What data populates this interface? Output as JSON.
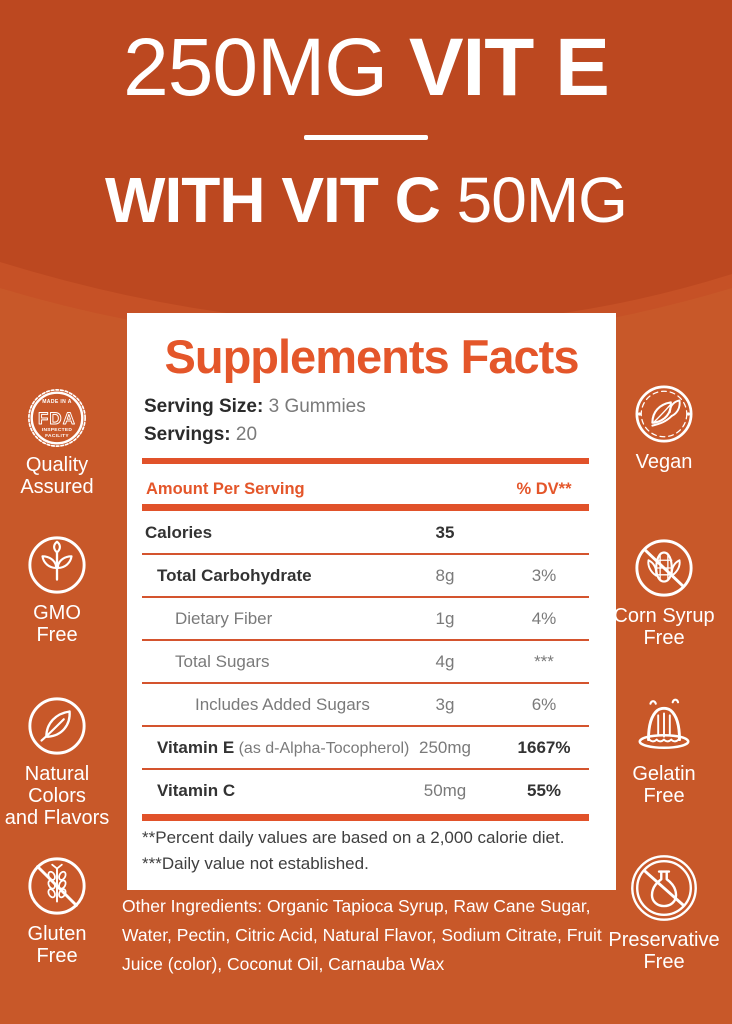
{
  "header": {
    "line1_light": "250MG ",
    "line1_bold": "VIT E",
    "line2_bold": "WITH VIT C ",
    "line2_light": "50MG"
  },
  "panel": {
    "title": "Supplements Facts",
    "serving_size_label": "Serving Size:",
    "serving_size_value": "3 Gummies",
    "servings_label": "Servings:",
    "servings_value": "20",
    "col_amount": "Amount Per Serving",
    "col_dv": "% DV**",
    "rows": [
      {
        "label": "Calories",
        "note": "",
        "amount": "35",
        "dv": "",
        "indent": 0,
        "bold": true,
        "amount_bold": true,
        "dv_bold": false
      },
      {
        "label": "Total Carbohydrate",
        "note": "",
        "amount": "8g",
        "dv": "3%",
        "indent": 1,
        "bold": true,
        "amount_bold": false,
        "dv_bold": false
      },
      {
        "label": "Dietary Fiber",
        "note": "",
        "amount": "1g",
        "dv": "4%",
        "indent": 2,
        "bold": false,
        "amount_bold": false,
        "dv_bold": false
      },
      {
        "label": "Total Sugars",
        "note": "",
        "amount": "4g",
        "dv": "***",
        "indent": 2,
        "bold": false,
        "amount_bold": false,
        "dv_bold": false
      },
      {
        "label": "Includes Added Sugars",
        "note": "",
        "amount": "3g",
        "dv": "6%",
        "indent": 3,
        "bold": false,
        "amount_bold": false,
        "dv_bold": false
      },
      {
        "label": "Vitamin E",
        "note": "(as d-Alpha-Tocopherol)",
        "amount": "250mg",
        "dv": "1667%",
        "indent": 1,
        "bold": true,
        "amount_bold": false,
        "dv_bold": true
      },
      {
        "label": "Vitamin C",
        "note": "",
        "amount": "50mg",
        "dv": "55%",
        "indent": 1,
        "bold": true,
        "amount_bold": false,
        "dv_bold": true
      }
    ],
    "footnote1": "**Percent daily values are based on a 2,000 calorie diet.",
    "footnote2": "***Daily value not established."
  },
  "ingredients": "Other Ingredients: Organic Tapioca Syrup, Raw Cane Sugar, Water, Pectin, Citric Acid, Natural Flavor, Sodium Citrate, Fruit Juice (color), Coconut Oil, Carnauba Wax",
  "badges": {
    "fda_text": {
      "top": "MADE IN A",
      "main": "FDA",
      "line1": "INSPECTED",
      "line2": "FACILITY"
    },
    "left": [
      {
        "name": "quality-assured",
        "icon": "fda-seal",
        "lines": [
          "Quality",
          "Assured"
        ]
      },
      {
        "name": "gmo-free",
        "icon": "gmo-plant",
        "lines": [
          "GMO",
          "Free"
        ]
      },
      {
        "name": "natural-colors-and-flavors",
        "icon": "leaf",
        "lines": [
          "Natural",
          "Colors",
          "and Flavors"
        ]
      },
      {
        "name": "gluten-free",
        "icon": "wheat-crossed",
        "lines": [
          "Gluten",
          "Free"
        ]
      }
    ],
    "right": [
      {
        "name": "vegan",
        "icon": "vegan-leaves",
        "lines": [
          "Vegan"
        ]
      },
      {
        "name": "corn-syrup-free",
        "icon": "corn-crossed",
        "lines": [
          "Corn Syrup",
          "Free"
        ]
      },
      {
        "name": "gelatin-free",
        "icon": "jelly",
        "lines": [
          "Gelatin",
          "Free"
        ]
      },
      {
        "name": "preservative-free",
        "icon": "flask-crossed",
        "lines": [
          "Preservative",
          "Free"
        ]
      }
    ]
  },
  "colors": {
    "background": "#C85829",
    "header_dark": "#BC4820",
    "header_mid": "#C65126",
    "accent_orange": "#E1522A",
    "title_orange": "#E4562A",
    "white": "#FFFFFF"
  }
}
